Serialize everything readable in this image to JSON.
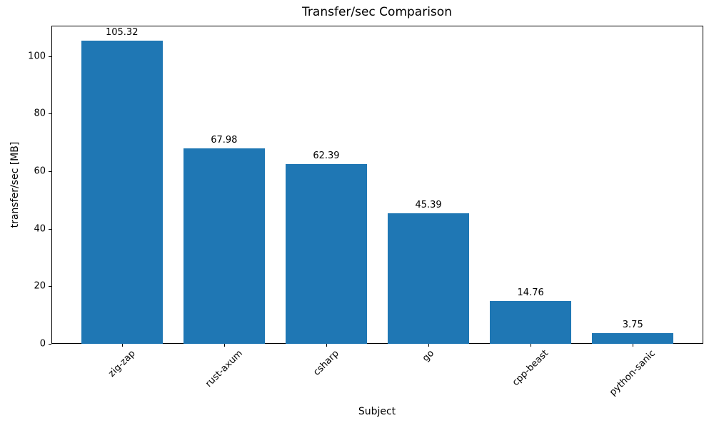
{
  "chart_data": {
    "type": "bar",
    "title": "Transfer/sec Comparison",
    "xlabel": "Subject",
    "ylabel": "transfer/sec [MB]",
    "categories": [
      "zig-zap",
      "rust-axum",
      "csharp",
      "go",
      "cpp-beast",
      "python-sanic"
    ],
    "values": [
      105.32,
      67.98,
      62.39,
      45.39,
      14.76,
      3.75
    ],
    "value_labels": [
      "105.32",
      "67.98",
      "62.39",
      "45.39",
      "14.76",
      "3.75"
    ],
    "yticks": [
      0,
      20,
      40,
      60,
      80,
      100
    ],
    "ylim": [
      0,
      110.6
    ],
    "bar_width_fraction": 0.8,
    "bar_color": "#1f77b4",
    "axis_color": "#000000",
    "text_color": "#000000",
    "grid": "off",
    "legend": "none",
    "x_tick_label_rotation_deg": 45
  }
}
